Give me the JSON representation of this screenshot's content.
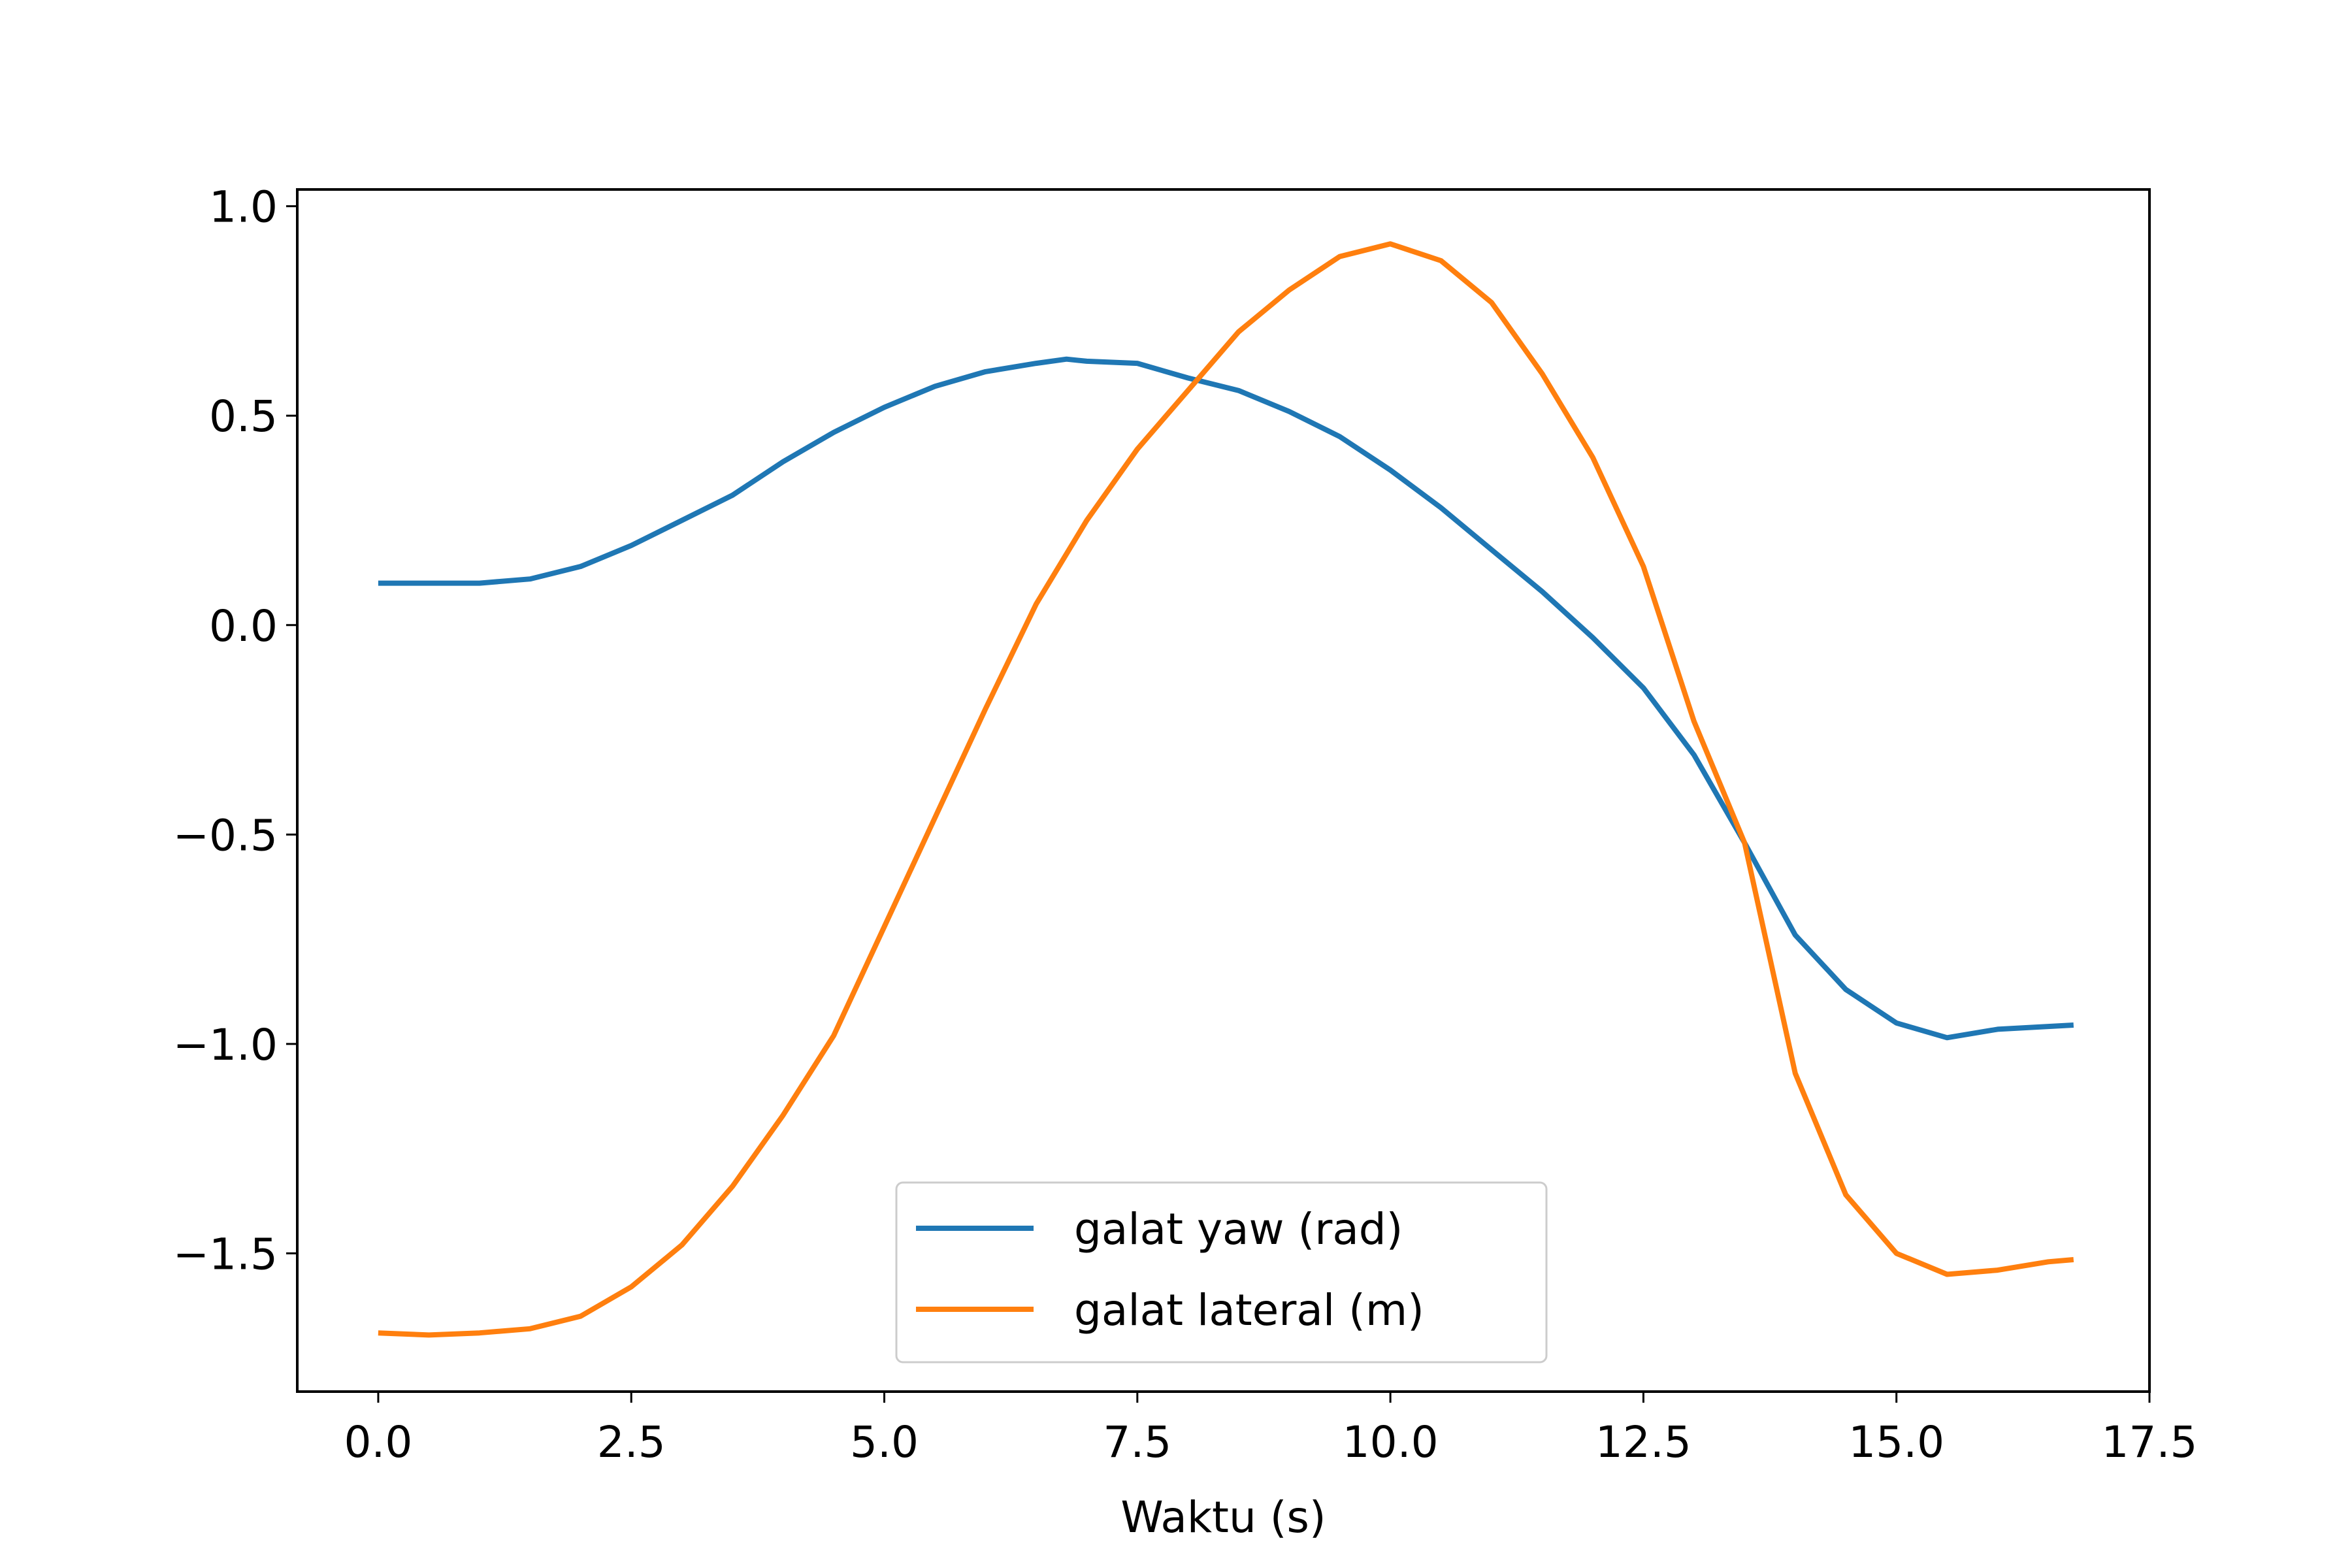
{
  "chart_data": {
    "type": "line",
    "title": "",
    "xlabel": "Waktu (s)",
    "ylabel": "",
    "xlim": [
      -0.8,
      17.5
    ],
    "ylim": [
      -1.83,
      1.04
    ],
    "x_ticks": [
      0.0,
      2.5,
      5.0,
      7.5,
      10.0,
      12.5,
      15.0,
      17.5
    ],
    "x_tick_labels": [
      "0.0",
      "2.5",
      "5.0",
      "7.5",
      "10.0",
      "12.5",
      "15.0",
      "17.5"
    ],
    "y_ticks": [
      1.0,
      0.5,
      0.0,
      -0.5,
      -1.0,
      -1.5
    ],
    "y_tick_labels": [
      "1.0",
      "0.5",
      "0.0",
      "−0.5",
      "−1.0",
      "−1.5"
    ],
    "grid": false,
    "legend_position": "lower-center",
    "series": [
      {
        "name": "galat yaw (rad)",
        "color": "#1f77b4",
        "x": [
          0,
          0.5,
          1.0,
          1.5,
          2.0,
          2.5,
          3.0,
          3.5,
          4.0,
          4.5,
          5.0,
          5.5,
          6.0,
          6.5,
          6.8,
          7.0,
          7.5,
          8.0,
          8.5,
          9.0,
          9.5,
          10.0,
          10.5,
          11.0,
          11.5,
          12.0,
          12.5,
          13.0,
          13.5,
          14.0,
          14.5,
          15.0,
          15.5,
          16.0,
          16.75
        ],
        "y": [
          0.1,
          0.1,
          0.1,
          0.11,
          0.14,
          0.19,
          0.25,
          0.31,
          0.39,
          0.46,
          0.52,
          0.57,
          0.605,
          0.625,
          0.635,
          0.63,
          0.625,
          0.59,
          0.56,
          0.51,
          0.45,
          0.37,
          0.28,
          0.18,
          0.08,
          -0.03,
          -0.15,
          -0.31,
          -0.52,
          -0.74,
          -0.87,
          -0.95,
          -0.985,
          -0.965,
          -0.955
        ]
      },
      {
        "name": "galat lateral (m)",
        "color": "#ff7f0e",
        "x": [
          0,
          0.5,
          1.0,
          1.5,
          2.0,
          2.5,
          3.0,
          3.5,
          4.0,
          4.5,
          5.0,
          5.5,
          6.0,
          6.5,
          7.0,
          7.5,
          8.0,
          8.5,
          9.0,
          9.5,
          10.0,
          10.5,
          11.0,
          11.5,
          12.0,
          12.5,
          13.0,
          13.5,
          14.0,
          14.5,
          15.0,
          15.5,
          16.0,
          16.5,
          16.75
        ],
        "y": [
          -1.69,
          -1.695,
          -1.69,
          -1.68,
          -1.65,
          -1.58,
          -1.48,
          -1.34,
          -1.17,
          -0.98,
          -0.72,
          -0.46,
          -0.2,
          0.05,
          0.25,
          0.42,
          0.56,
          0.7,
          0.8,
          0.88,
          0.91,
          0.87,
          0.77,
          0.6,
          0.4,
          0.14,
          -0.23,
          -0.52,
          -1.07,
          -1.36,
          -1.5,
          -1.55,
          -1.54,
          -1.52,
          -1.515
        ]
      }
    ]
  }
}
